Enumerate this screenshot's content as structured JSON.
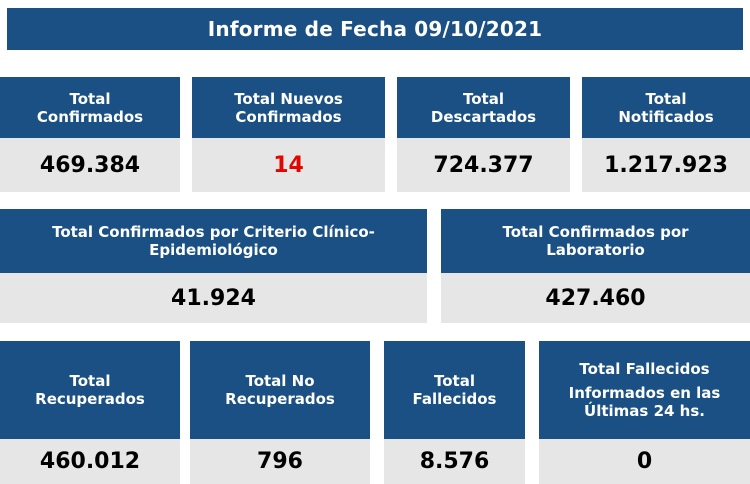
{
  "banner": {
    "title": "Informe de Fecha 09/10/2021"
  },
  "row1": [
    {
      "label_line1": "Total",
      "label_line2": "Confirmados",
      "value": "469.384"
    },
    {
      "label_line1": "Total Nuevos",
      "label_line2": "Confirmados",
      "value": "14",
      "value_color": "#e10600"
    },
    {
      "label_line1": "Total",
      "label_line2": "Descartados",
      "value": "724.377"
    },
    {
      "label_line1": "Total",
      "label_line2": "Notificados",
      "value": "1.217.923"
    }
  ],
  "row2": [
    {
      "label_line1": "Total Confirmados por Criterio Clínico-",
      "label_line2": "Epidemiológico",
      "value": "41.924"
    },
    {
      "label_line1": "Total Confirmados por",
      "label_line2": "Laboratorio",
      "value": "427.460"
    }
  ],
  "row3": [
    {
      "label_line1": "Total",
      "label_line2": "Recuperados",
      "value": "460.012"
    },
    {
      "label_line1": "Total No",
      "label_line2": "Recuperados",
      "value": "796"
    },
    {
      "label_line1": "Total",
      "label_line2": "Fallecidos",
      "value": "8.576"
    },
    {
      "label_line1": "Total Fallecidos",
      "label_line2": "Informados en las",
      "label_line3": "Últimas 24 hs.",
      "value": "0"
    }
  ],
  "colors": {
    "header_bg": "#1a5084",
    "value_bg": "#e6e6e6",
    "highlight": "#e10600"
  }
}
